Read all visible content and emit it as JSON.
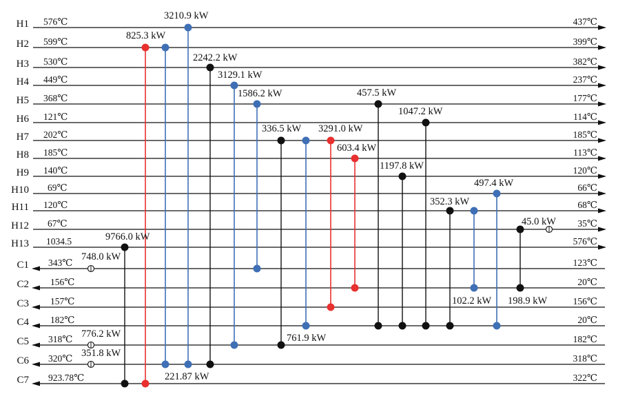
{
  "colors": {
    "line": "#111111",
    "red": "#e8302f",
    "blue": "#3f6fb5",
    "black": "#111111"
  },
  "streams": [
    {
      "name": "H1",
      "kind": "hot",
      "inlet": "576℃",
      "outlet": "437℃"
    },
    {
      "name": "H2",
      "kind": "hot",
      "inlet": "599℃",
      "outlet": "399℃"
    },
    {
      "name": "H3",
      "kind": "hot",
      "inlet": "530℃",
      "outlet": "382℃"
    },
    {
      "name": "H4",
      "kind": "hot",
      "inlet": "449℃",
      "outlet": "237℃"
    },
    {
      "name": "H5",
      "kind": "hot",
      "inlet": "368℃",
      "outlet": "177℃"
    },
    {
      "name": "H6",
      "kind": "hot",
      "inlet": "121℃",
      "outlet": "114℃"
    },
    {
      "name": "H7",
      "kind": "hot",
      "inlet": "202℃",
      "outlet": "185℃"
    },
    {
      "name": "H8",
      "kind": "hot",
      "inlet": "185℃",
      "outlet": "113℃"
    },
    {
      "name": "H9",
      "kind": "hot",
      "inlet": "140℃",
      "outlet": "120℃"
    },
    {
      "name": "H10",
      "kind": "hot",
      "inlet": "69℃",
      "outlet": "66℃"
    },
    {
      "name": "H11",
      "kind": "hot",
      "inlet": "120℃",
      "outlet": "68℃"
    },
    {
      "name": "H12",
      "kind": "hot",
      "inlet": "67℃",
      "outlet": "35℃"
    },
    {
      "name": "H13",
      "kind": "hot",
      "inlet": "1034.5",
      "outlet": "576℃"
    },
    {
      "name": "C1",
      "kind": "cold",
      "inlet": "343℃",
      "outlet": "123℃"
    },
    {
      "name": "C2",
      "kind": "cold",
      "inlet": "156℃",
      "outlet": "20℃"
    },
    {
      "name": "C3",
      "kind": "cold",
      "inlet": "157℃",
      "outlet": "156℃"
    },
    {
      "name": "C4",
      "kind": "cold",
      "inlet": "182℃",
      "outlet": "20℃"
    },
    {
      "name": "C5",
      "kind": "cold",
      "inlet": "318℃",
      "outlet": "182℃"
    },
    {
      "name": "C6",
      "kind": "cold",
      "inlet": "320℃",
      "outlet": "318℃"
    },
    {
      "name": "C7",
      "kind": "cold",
      "inlet": "923.78℃",
      "outlet": "322℃"
    }
  ],
  "exchangers": [
    {
      "hot": "H2",
      "cold": "C7",
      "color": "red",
      "duty": "825.3 kW"
    },
    {
      "hot": "H2",
      "cold": "C6",
      "color": "blue",
      "duty": ""
    },
    {
      "hot": "H1",
      "cold": "C6",
      "color": "blue",
      "duty": "3210.9 kW"
    },
    {
      "hot": "H3",
      "cold": "C6",
      "color": "black",
      "duty": "2242.2 kW"
    },
    {
      "hot": "H4",
      "cold": "C5",
      "color": "blue",
      "duty": "3129.1 kW"
    },
    {
      "hot": "H5",
      "cold": "C1",
      "color": "blue",
      "duty": "1586.2 kW"
    },
    {
      "hot": "H7",
      "cold": "C5",
      "color": "black",
      "duty": "336.5 kW"
    },
    {
      "hot": "H7",
      "cold": "C4",
      "color": "blue",
      "duty": ""
    },
    {
      "hot": "H7",
      "cold": "C3",
      "color": "red",
      "duty": "3291.0 kW"
    },
    {
      "hot": "H8",
      "cold": "C2",
      "color": "red",
      "duty": "603.4 kW"
    },
    {
      "hot": "H5",
      "cold": "C4",
      "color": "black",
      "duty": "457.5 kW"
    },
    {
      "hot": "H9",
      "cold": "C4",
      "color": "black",
      "duty": "1197.8 kW"
    },
    {
      "hot": "H6",
      "cold": "C4",
      "color": "black",
      "duty": "1047.2 kW"
    },
    {
      "hot": "H11",
      "cold": "C4",
      "color": "black",
      "duty": "352.3 kW"
    },
    {
      "hot": "H11",
      "cold": "C2",
      "color": "blue",
      "duty": ""
    },
    {
      "hot": "H10",
      "cold": "C4",
      "color": "blue",
      "duty": "497.4 kW"
    },
    {
      "hot": "H12",
      "cold": "C2",
      "color": "black",
      "duty": ""
    },
    {
      "hot": "H13",
      "cold": "C7",
      "color": "black",
      "duty": "9766.0 kW"
    }
  ],
  "utilities": [
    {
      "stream": "H12",
      "duty": "45.0 kW"
    },
    {
      "stream": "C1",
      "duty": "748.0 kW"
    },
    {
      "stream": "C5",
      "duty": "776.2 kW"
    },
    {
      "stream": "C6",
      "duty": "351.8 kW"
    }
  ],
  "lower_duty_labels": [
    {
      "text": "102.2 kW"
    },
    {
      "text": "198.9 kW"
    },
    {
      "text": "761.9 kW"
    },
    {
      "text": "221.87 kW"
    }
  ]
}
